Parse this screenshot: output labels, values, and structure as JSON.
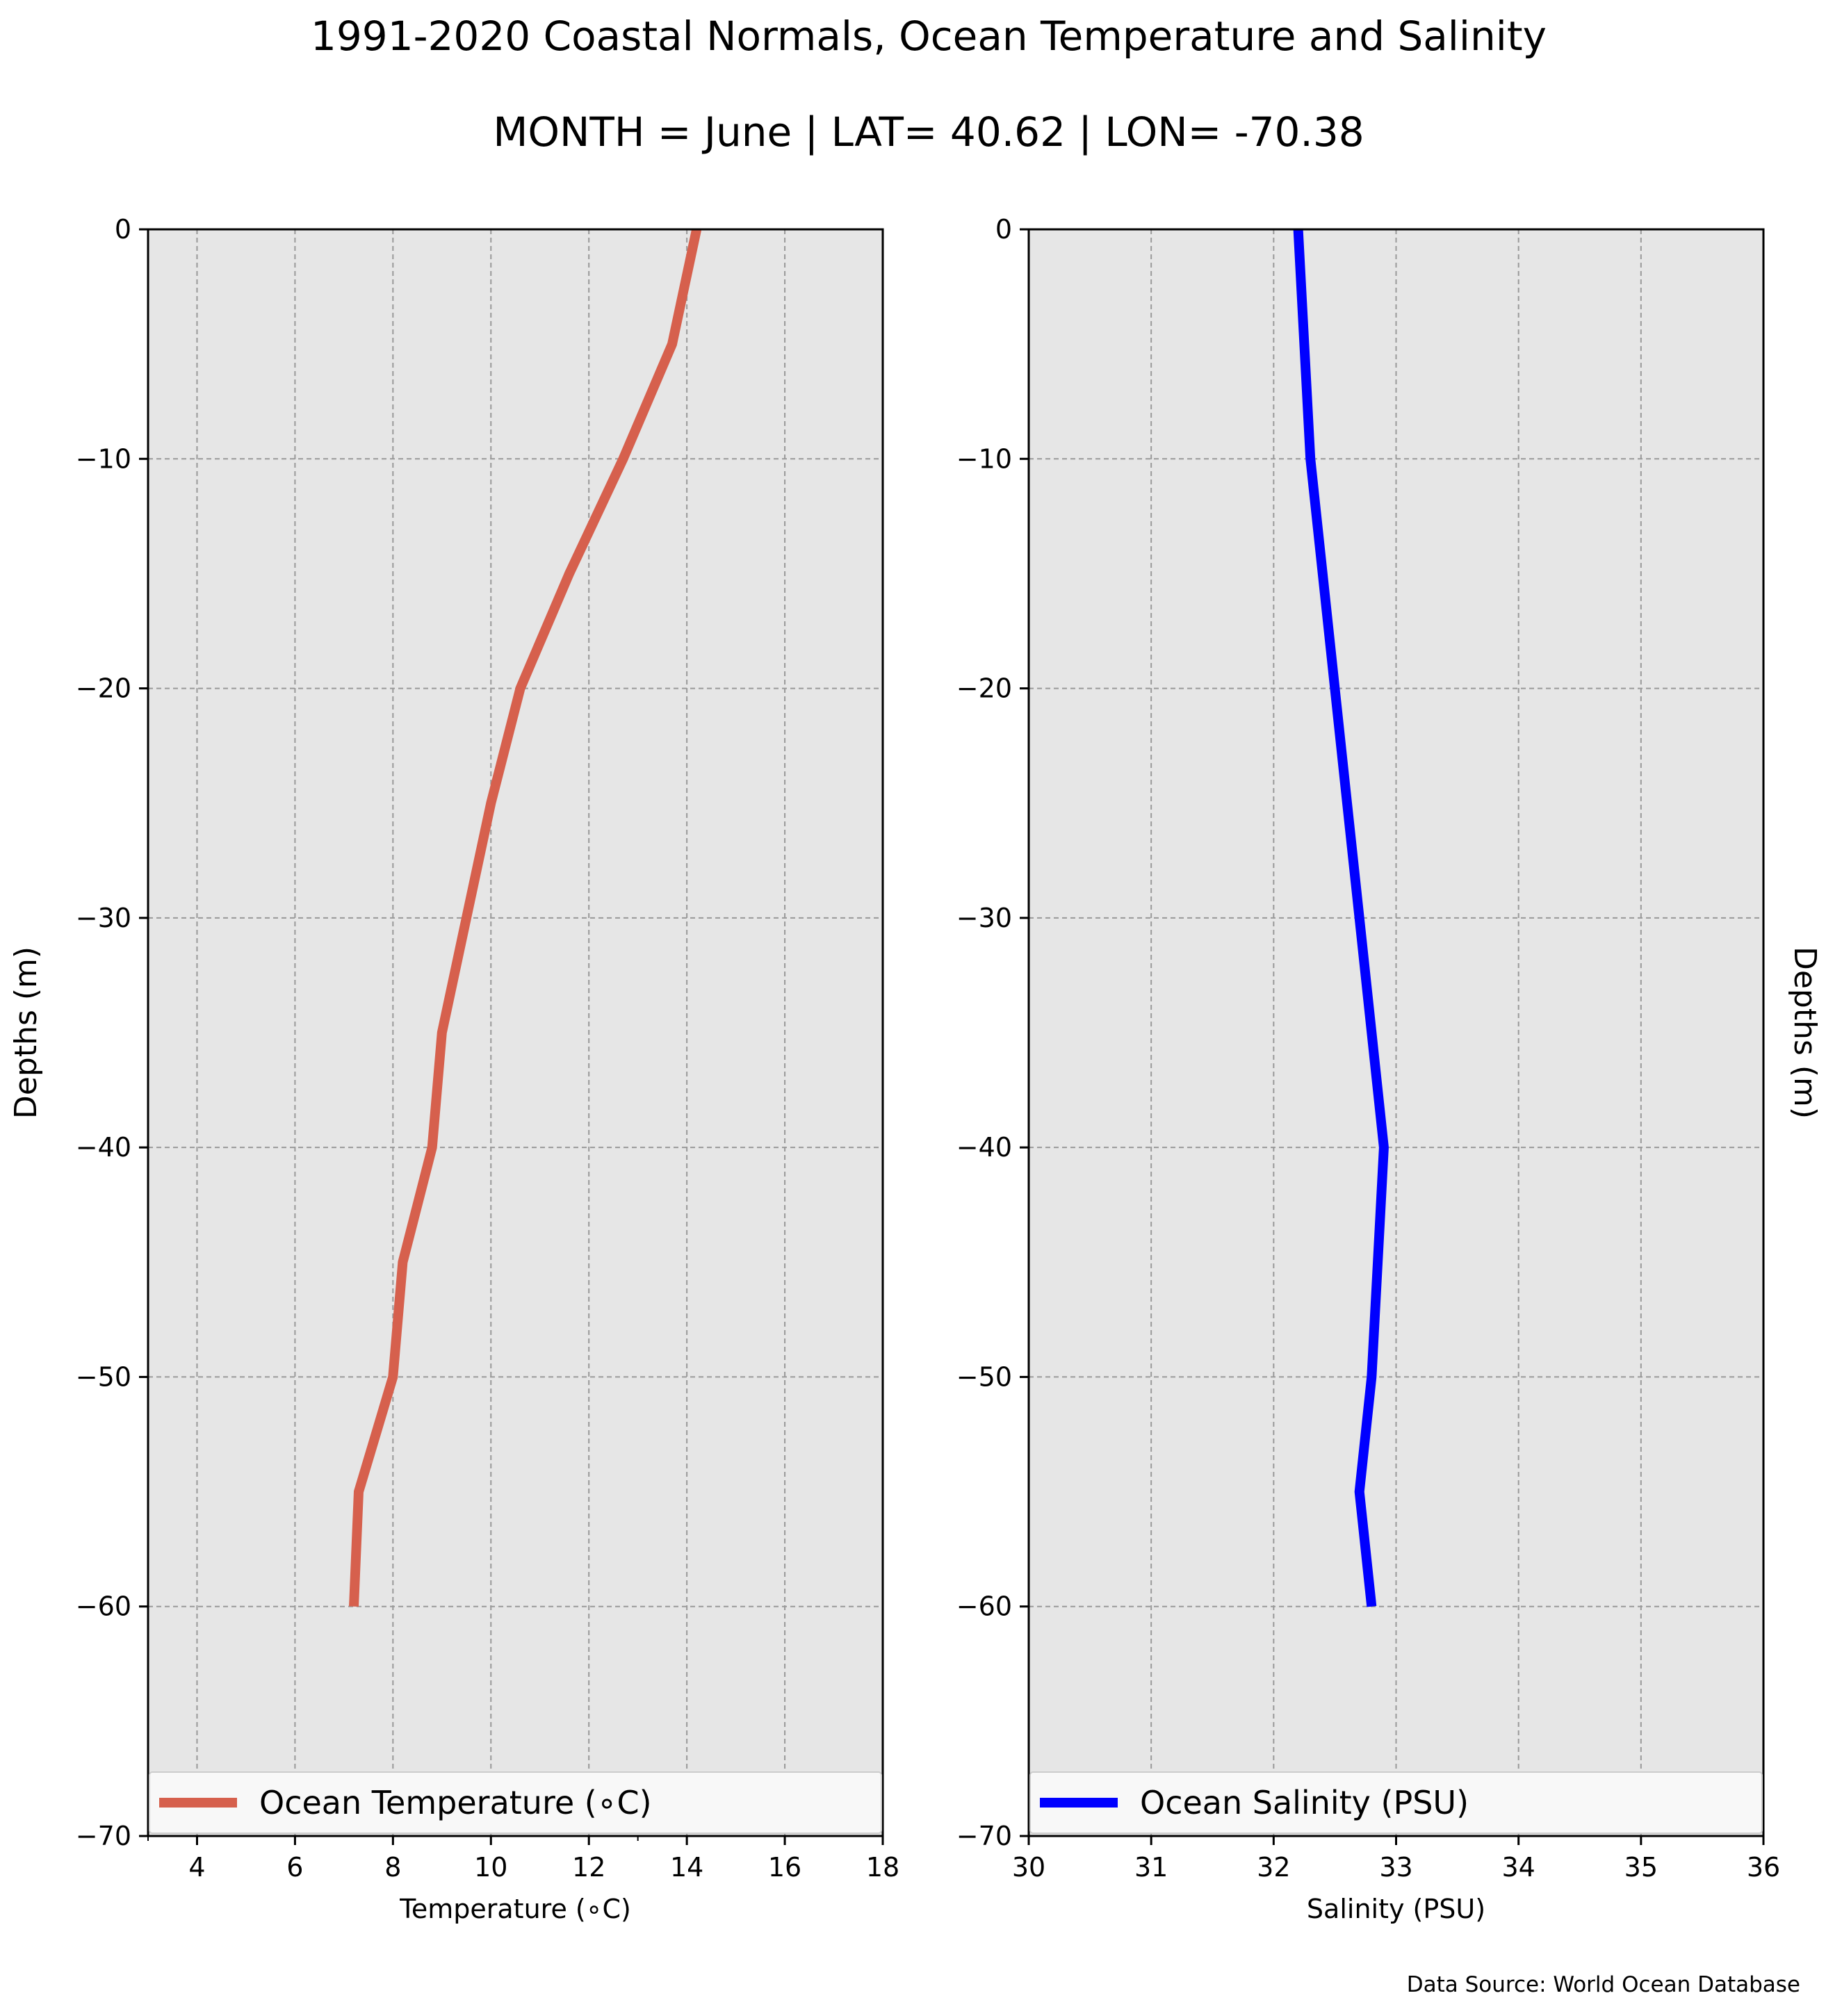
{
  "title_line1": "1991-2020 Coastal Normals, Ocean Temperature and Salinity",
  "title_line2": "MONTH = June | LAT= 40.62 | LON= -70.38",
  "footnote": "Data Source: World Ocean Database",
  "colors": {
    "background": "#e6e6e6",
    "grid": "#999999",
    "temperature": "#d6604d",
    "salinity": "#0000ff"
  },
  "chart_data": [
    {
      "type": "line",
      "xlabel": "Temperature ($^\\circ$C)",
      "xlabel_display": "Temperature (∘C)",
      "ylabel": "Depths (m)",
      "xlim": [
        3,
        18
      ],
      "ylim": [
        -70,
        0
      ],
      "xticks": [
        4,
        6,
        8,
        10,
        12,
        14,
        16,
        18
      ],
      "xticks_minor": [
        3,
        13
      ],
      "yticks": [
        0,
        -10,
        -20,
        -30,
        -40,
        -50,
        -60,
        -70
      ],
      "grid": true,
      "legend_position": "bottom",
      "legend_label": "Ocean Temperature (∘C)",
      "series": [
        {
          "name": "Ocean Temperature (∘C)",
          "color": "#d6604d",
          "points": [
            [
              14.2,
              0
            ],
            [
              13.7,
              -5
            ],
            [
              12.7,
              -10
            ],
            [
              11.6,
              -15
            ],
            [
              10.6,
              -20
            ],
            [
              10.0,
              -25
            ],
            [
              9.5,
              -30
            ],
            [
              9.0,
              -35
            ],
            [
              8.8,
              -40
            ],
            [
              8.2,
              -45
            ],
            [
              8.0,
              -50
            ],
            [
              7.3,
              -55
            ],
            [
              7.2,
              -60
            ]
          ]
        }
      ]
    },
    {
      "type": "line",
      "xlabel": "Salinity (PSU)",
      "ylabel": "Depths (m)",
      "xlim": [
        30,
        36
      ],
      "ylim": [
        -70,
        0
      ],
      "xticks": [
        30,
        31,
        32,
        33,
        34,
        35,
        36
      ],
      "yticks": [
        0,
        -10,
        -20,
        -30,
        -40,
        -50,
        -60,
        -70
      ],
      "grid": true,
      "legend_position": "bottom",
      "legend_label": "Ocean Salinity (PSU)",
      "series": [
        {
          "name": "Ocean Salinity (PSU)",
          "color": "#0000ff",
          "points": [
            [
              32.2,
              0
            ],
            [
              32.25,
              -5
            ],
            [
              32.3,
              -10
            ],
            [
              32.4,
              -15
            ],
            [
              32.5,
              -20
            ],
            [
              32.6,
              -25
            ],
            [
              32.7,
              -30
            ],
            [
              32.8,
              -35
            ],
            [
              32.9,
              -40
            ],
            [
              32.85,
              -45
            ],
            [
              32.8,
              -50
            ],
            [
              32.7,
              -55
            ],
            [
              32.8,
              -60
            ]
          ]
        }
      ]
    }
  ]
}
